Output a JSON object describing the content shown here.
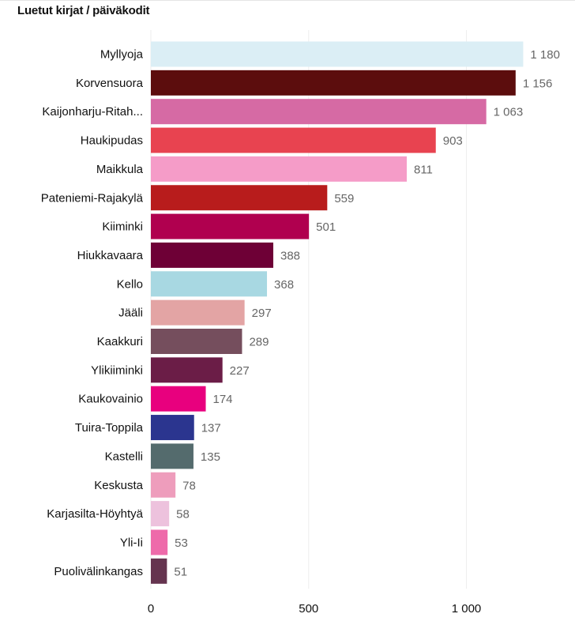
{
  "header": {
    "title": "Luetut kirjat / päiväkodit"
  },
  "chart_data": {
    "type": "bar",
    "orientation": "horizontal",
    "title": "Luetut kirjat / päiväkodit",
    "categories": [
      "Myllyoja",
      "Korvensuora",
      "Kaijonharju-Ritah...",
      "Haukipudas",
      "Maikkula",
      "Pateniemi-Rajakylä",
      "Kiiminki",
      "Hiukkavaara",
      "Kello",
      "Jääli",
      "Kaakkuri",
      "Ylikiiminki",
      "Kaukovainio",
      "Tuira-Toppila",
      "Kastelli",
      "Keskusta",
      "Karjasilta-Höyhtyä",
      "Yli-Ii",
      "Puolivälinkangas"
    ],
    "values": [
      1180,
      1156,
      1063,
      903,
      811,
      559,
      501,
      388,
      368,
      297,
      289,
      227,
      174,
      137,
      135,
      78,
      58,
      53,
      51
    ],
    "value_labels": [
      "1 180",
      "1 156",
      "1 063",
      "903",
      "811",
      "559",
      "501",
      "388",
      "368",
      "297",
      "289",
      "227",
      "174",
      "137",
      "135",
      "78",
      "58",
      "53",
      "51"
    ],
    "colors": [
      "#dbeef5",
      "#5c0d0d",
      "#d66aa4",
      "#e84350",
      "#f59cc8",
      "#b81c1c",
      "#b0004f",
      "#6e0036",
      "#a8d8e2",
      "#e3a4a4",
      "#754e5d",
      "#6b1d47",
      "#e8007e",
      "#2b358f",
      "#546b6d",
      "#ee9dbc",
      "#edc2dd",
      "#ee6aaa",
      "#65344f"
    ],
    "xlim": [
      0,
      1200
    ],
    "xticks": [
      0,
      500,
      1000
    ],
    "xtick_labels": [
      "0",
      "500",
      "1 000"
    ],
    "grid": true,
    "legend": "none"
  }
}
